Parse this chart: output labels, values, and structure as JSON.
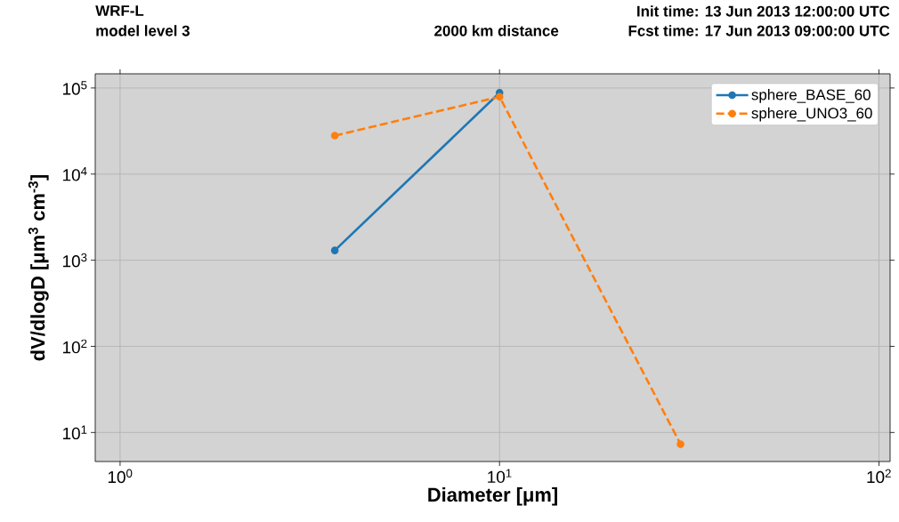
{
  "chart_data": {
    "type": "line",
    "title": "WRF-L",
    "subtitle": "model level 3",
    "annotations": [
      "Init time: 13 Jun 2013 12:00:00 UTC",
      "2000 km distance",
      "Fcst time: 17 Jun 2013 09:00:00 UTC"
    ],
    "xlabel": "Diameter [μm]",
    "ylabel": "dV/dlogD [μm$^{3}$ cm$^{-3}$]",
    "series": [
      {
        "name": "sphere_BASE_60",
        "color": "#1f77b4",
        "line_style": "solid",
        "x": [
          3.68,
          10
        ],
        "values": [
          1300,
          88000
        ]
      },
      {
        "name": "sphere_UNO3_60",
        "color": "#ff7f0e",
        "line_style": "dashed",
        "x": [
          3.68,
          10,
          30
        ],
        "values": [
          28000,
          79000,
          7.3
        ]
      }
    ],
    "log": "xy",
    "xlim": [
      0.86,
      107
    ],
    "ylim": [
      4.6,
      146000
    ],
    "xticks": [
      {
        "value": 1,
        "label": "10$^{0}$"
      },
      {
        "value": 10,
        "label": "10$^{1}$"
      },
      {
        "value": 100,
        "label": "10$^{2}$"
      }
    ],
    "yticks": [
      {
        "value": 10,
        "label": "10$^{1}$"
      },
      {
        "value": 100,
        "label": "10$^{2}$"
      },
      {
        "value": 1000,
        "label": "10$^{3}$"
      },
      {
        "value": 10000,
        "label": "10$^{4}$"
      },
      {
        "value": 100000,
        "label": "10$^{5}$"
      }
    ],
    "grid": true,
    "legend": "top right",
    "marker": "circle"
  }
}
